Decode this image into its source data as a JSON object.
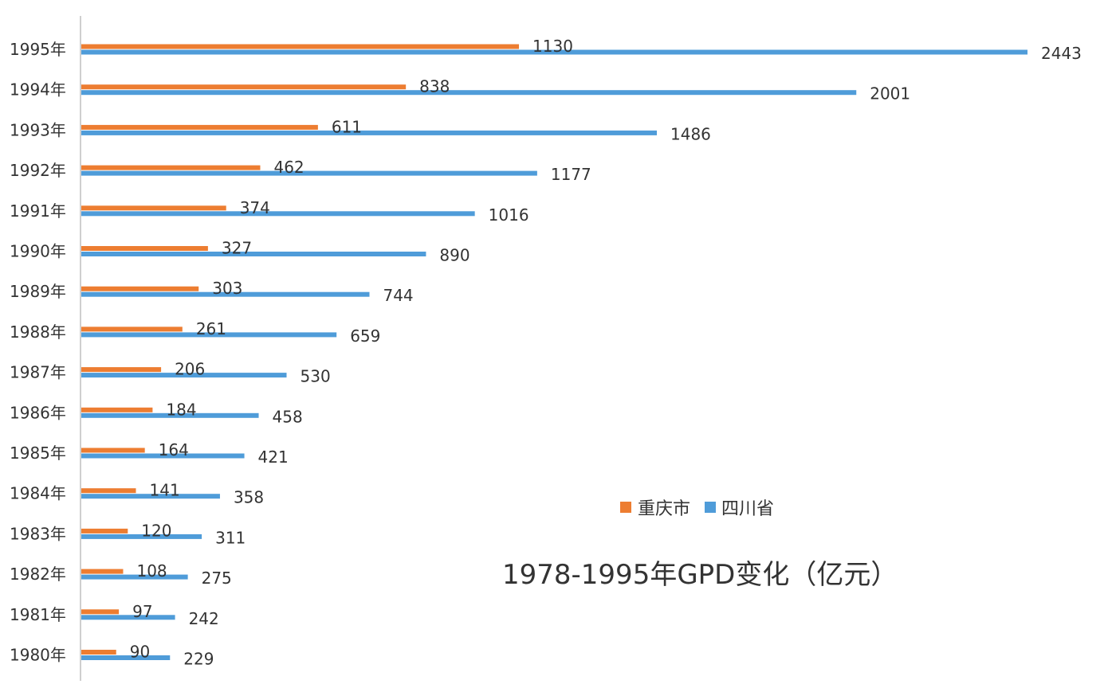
{
  "chart_data": {
    "type": "bar",
    "orientation": "horizontal",
    "title": "1978-1995年GPD变化（亿元）",
    "categories": [
      "1995年",
      "1994年",
      "1993年",
      "1992年",
      "1991年",
      "1990年",
      "1989年",
      "1988年",
      "1987年",
      "1986年",
      "1985年",
      "1984年",
      "1983年",
      "1982年",
      "1981年",
      "1980年"
    ],
    "series": [
      {
        "name": "重庆市",
        "color": "#ED7D31",
        "values": [
          1130,
          838,
          611,
          462,
          374,
          327,
          303,
          261,
          206,
          184,
          164,
          141,
          120,
          108,
          97,
          90
        ]
      },
      {
        "name": "四川省",
        "color": "#4F9CD9",
        "values": [
          2443,
          2001,
          1486,
          1177,
          1016,
          890,
          744,
          659,
          530,
          458,
          421,
          358,
          311,
          275,
          242,
          229
        ]
      }
    ],
    "xlim": [
      0,
      2443
    ],
    "grid": false,
    "legend_position": "right-middle"
  }
}
